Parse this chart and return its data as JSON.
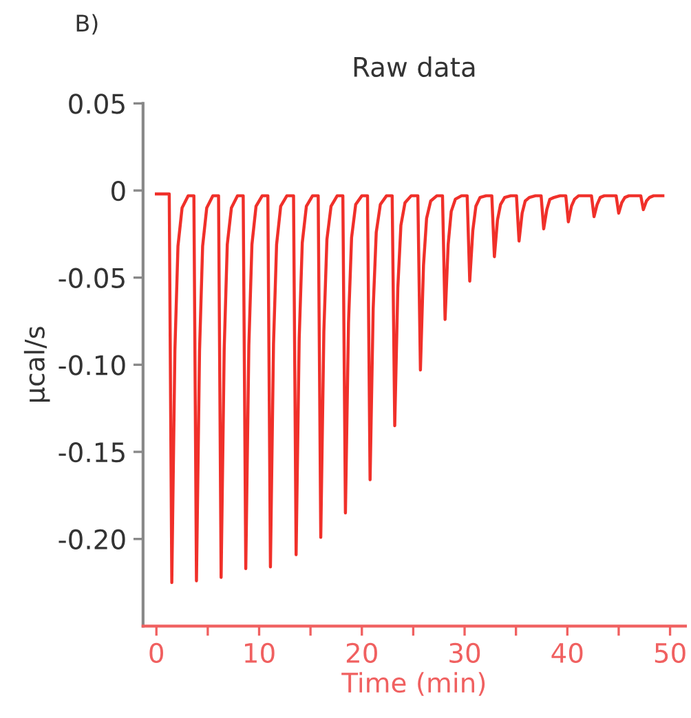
{
  "chart_data": {
    "type": "line",
    "title": "Raw data",
    "xlabel": "Time (min)",
    "ylabel": "µcal/s",
    "annotations": [
      "B)"
    ],
    "x": [
      0,
      1.25,
      1.5,
      1.8,
      2.1,
      2.5,
      3.1,
      3.65,
      3.9,
      4.2,
      4.5,
      4.9,
      5.5,
      6.05,
      6.3,
      6.6,
      6.9,
      7.3,
      7.9,
      8.45,
      8.7,
      9.0,
      9.3,
      9.7,
      10.3,
      10.85,
      11.1,
      11.4,
      11.7,
      12.1,
      12.7,
      13.35,
      13.6,
      13.9,
      14.2,
      14.6,
      15.2,
      15.75,
      16.0,
      16.3,
      16.6,
      17.0,
      17.6,
      18.15,
      18.4,
      18.7,
      19.0,
      19.4,
      20.0,
      20.55,
      20.8,
      21.1,
      21.4,
      21.8,
      22.4,
      22.95,
      23.2,
      23.5,
      23.8,
      24.2,
      24.8,
      25.45,
      25.7,
      26.0,
      26.3,
      26.7,
      27.3,
      27.85,
      28.1,
      28.4,
      28.7,
      29.1,
      29.7,
      30.25,
      30.5,
      30.8,
      31.1,
      31.5,
      32.1,
      32.65,
      32.9,
      33.2,
      33.5,
      33.9,
      34.5,
      35.05,
      35.3,
      35.6,
      35.9,
      36.3,
      36.9,
      37.45,
      37.7,
      38.0,
      38.3,
      38.7,
      39.3,
      39.85,
      40.1,
      40.4,
      40.7,
      41.1,
      41.7,
      42.35,
      42.6,
      42.9,
      43.2,
      43.6,
      44.2,
      44.75,
      45.0,
      45.3,
      45.6,
      46.0,
      46.6,
      47.15,
      47.4,
      47.7,
      48.0,
      48.4,
      49.3
    ],
    "series": [
      {
        "color": "#f0302a",
        "values": [
          -0.002,
          -0.002,
          -0.225,
          -0.092,
          -0.032,
          -0.01,
          -0.003,
          -0.003,
          -0.224,
          -0.092,
          -0.032,
          -0.01,
          -0.003,
          -0.003,
          -0.222,
          -0.091,
          -0.031,
          -0.01,
          -0.003,
          -0.003,
          -0.217,
          -0.089,
          -0.031,
          -0.009,
          -0.003,
          -0.003,
          -0.216,
          -0.088,
          -0.031,
          -0.009,
          -0.003,
          -0.003,
          -0.209,
          -0.085,
          -0.03,
          -0.009,
          -0.003,
          -0.003,
          -0.199,
          -0.081,
          -0.028,
          -0.009,
          -0.003,
          -0.003,
          -0.185,
          -0.076,
          -0.027,
          -0.008,
          -0.003,
          -0.003,
          -0.166,
          -0.068,
          -0.024,
          -0.008,
          -0.003,
          -0.003,
          -0.135,
          -0.056,
          -0.02,
          -0.007,
          -0.003,
          -0.003,
          -0.103,
          -0.043,
          -0.016,
          -0.006,
          -0.003,
          -0.003,
          -0.074,
          -0.031,
          -0.012,
          -0.005,
          -0.003,
          -0.003,
          -0.052,
          -0.023,
          -0.009,
          -0.004,
          -0.003,
          -0.003,
          -0.038,
          -0.017,
          -0.008,
          -0.004,
          -0.003,
          -0.003,
          -0.029,
          -0.013,
          -0.006,
          -0.004,
          -0.003,
          -0.003,
          -0.022,
          -0.011,
          -0.005,
          -0.004,
          -0.003,
          -0.003,
          -0.018,
          -0.009,
          -0.005,
          -0.003,
          -0.003,
          -0.003,
          -0.015,
          -0.008,
          -0.004,
          -0.003,
          -0.003,
          -0.003,
          -0.013,
          -0.007,
          -0.004,
          -0.003,
          -0.003,
          -0.003,
          -0.011,
          -0.006,
          -0.004,
          -0.003,
          -0.003
        ]
      }
    ],
    "xlim": [
      -1.3,
      51.5
    ],
    "xticks": [
      0,
      {
        "value": 5,
        "label": null
      },
      10,
      {
        "value": 15,
        "label": null
      },
      20,
      {
        "value": 25,
        "label": null
      },
      30,
      {
        "value": 35,
        "label": null
      },
      40,
      {
        "value": 45,
        "label": null
      },
      50
    ],
    "ylim": [
      -0.25,
      0.05
    ],
    "yticks": [
      {
        "value": 0.05,
        "label": "0.05"
      },
      {
        "value": 0,
        "label": "0"
      },
      {
        "value": -0.05,
        "label": "-0.05"
      },
      {
        "value": -0.1,
        "label": "-0.10"
      },
      {
        "value": -0.15,
        "label": "-0.15"
      },
      {
        "value": -0.2,
        "label": "-0.20"
      }
    ],
    "grid": false,
    "marker": "none",
    "line_style": "solid"
  }
}
